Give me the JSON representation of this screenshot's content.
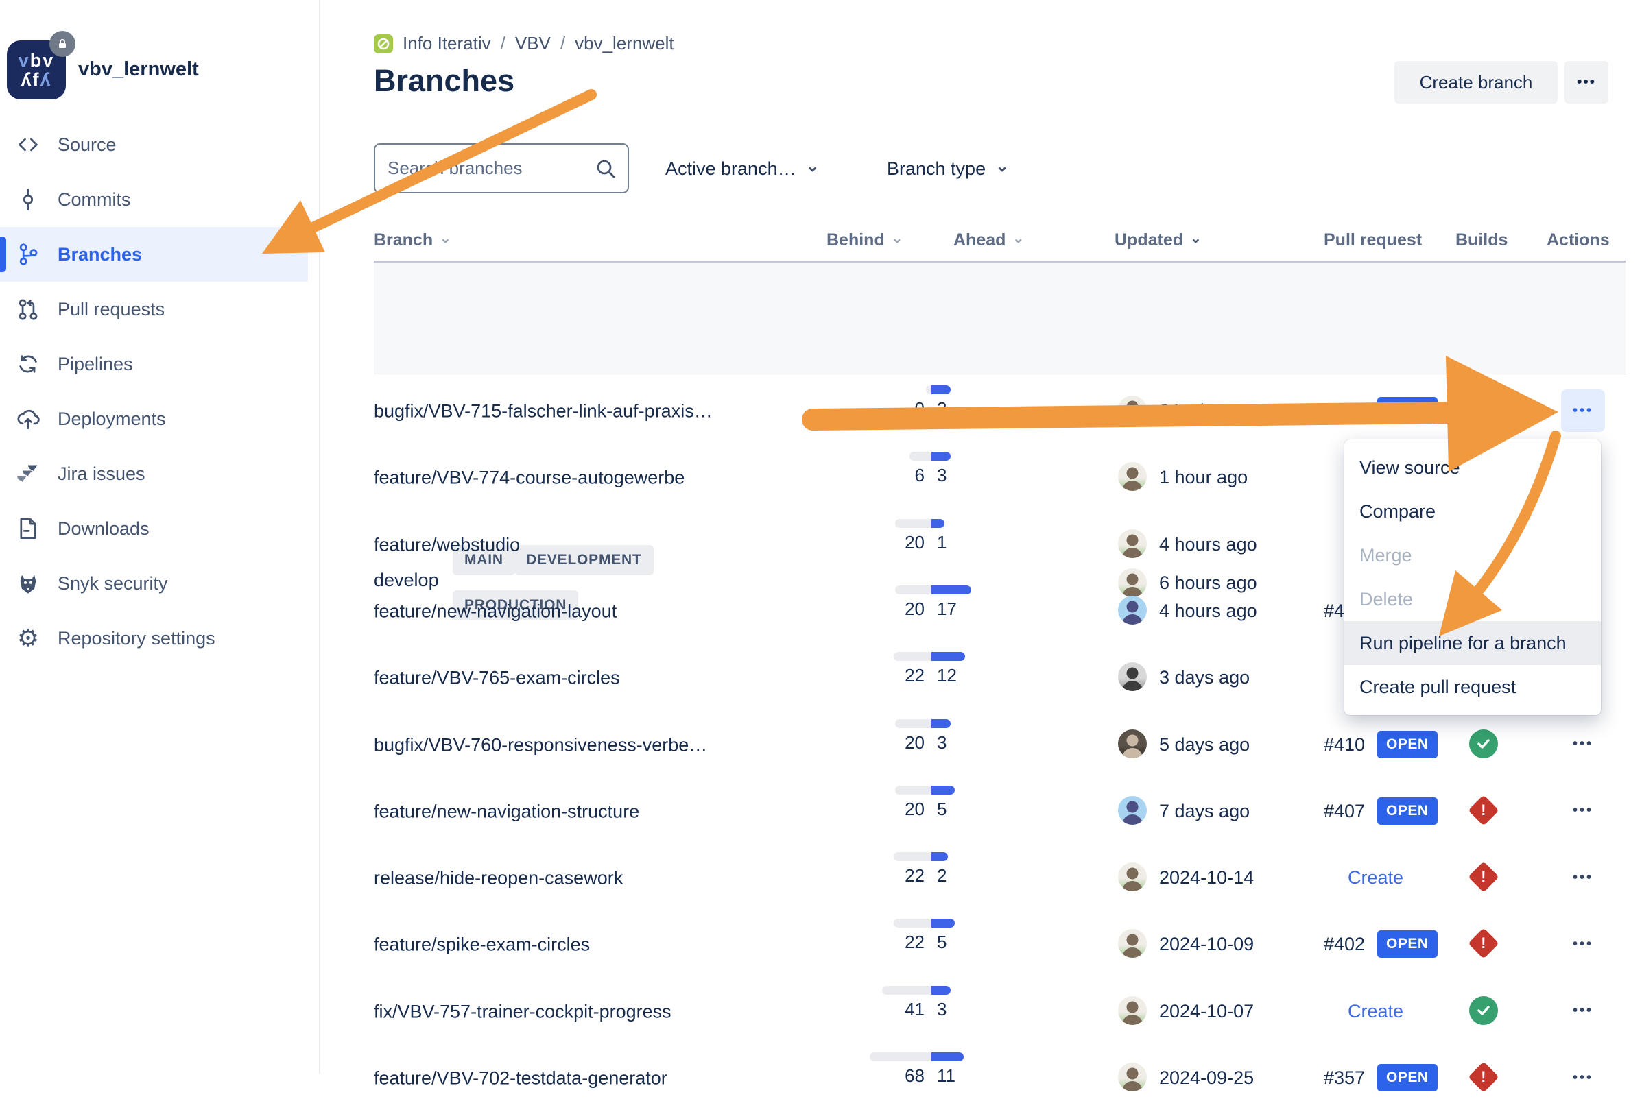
{
  "sidebar": {
    "repo_name": "vbv_lernwelt",
    "logo_text_top": "vbv",
    "logo_text_bottom": "ʌfʌ",
    "items": [
      {
        "label": "Source",
        "icon": "source-icon",
        "selected": false
      },
      {
        "label": "Commits",
        "icon": "commits-icon",
        "selected": false
      },
      {
        "label": "Branches",
        "icon": "branches-icon",
        "selected": true
      },
      {
        "label": "Pull requests",
        "icon": "pull-requests-icon",
        "selected": false
      },
      {
        "label": "Pipelines",
        "icon": "pipelines-icon",
        "selected": false
      },
      {
        "label": "Deployments",
        "icon": "deployments-icon",
        "selected": false
      },
      {
        "label": "Jira issues",
        "icon": "jira-icon",
        "selected": false
      },
      {
        "label": "Downloads",
        "icon": "downloads-icon",
        "selected": false
      },
      {
        "label": "Snyk security",
        "icon": "snyk-icon",
        "selected": false
      },
      {
        "label": "Repository settings",
        "icon": "settings-icon",
        "selected": false
      }
    ]
  },
  "breadcrumb": {
    "items": [
      "Info Iterativ",
      "VBV",
      "vbv_lernwelt"
    ],
    "separator": "/"
  },
  "header": {
    "title": "Branches",
    "create_branch_label": "Create branch",
    "more_button": "•••"
  },
  "filters": {
    "search_placeholder": "Search branches",
    "active_branch": "Active branch…",
    "branch_type": "Branch type"
  },
  "table": {
    "columns": [
      {
        "label": "Branch",
        "sortable": true,
        "sorted": false
      },
      {
        "label": "Behind",
        "sortable": true,
        "sorted": false
      },
      {
        "label": "Ahead",
        "sortable": true,
        "sorted": false
      },
      {
        "label": "Updated",
        "sortable": true,
        "sorted": true
      },
      {
        "label": "Pull request",
        "sortable": false,
        "sorted": false
      },
      {
        "label": "Builds",
        "sortable": false,
        "sorted": false
      },
      {
        "label": "Actions",
        "sortable": false,
        "sorted": false
      }
    ]
  },
  "develop_row": {
    "branch": "develop",
    "environment_labels": [
      "MAIN",
      "DEVELOPMENT",
      "PRODUCTION"
    ],
    "updated": "6 hours ago",
    "avatar": "man-photo",
    "build": "success"
  },
  "rows": [
    {
      "branch": "bugfix/VBV-715-falscher-link-auf-praxis…",
      "behind": 0,
      "ahead": 3,
      "updated": "24 minutes ago",
      "avatar": "man-photo",
      "pr": "#411",
      "pr_state": "OPEN",
      "build": "in-progress",
      "actions": true,
      "actions_active": true
    },
    {
      "branch": "feature/VBV-774-course-autogewerbe",
      "behind": 6,
      "ahead": 3,
      "updated": "1 hour ago",
      "avatar": "man-photo",
      "pr": null,
      "pr_state": null,
      "build": null,
      "actions": false,
      "actions_active": false
    },
    {
      "branch": "feature/webstudio",
      "behind": 20,
      "ahead": 1,
      "updated": "4 hours ago",
      "avatar": "man-photo",
      "pr": null,
      "pr_state": null,
      "build": null,
      "actions": false,
      "actions_active": false
    },
    {
      "branch": "feature/new-navigation-layout",
      "behind": 20,
      "ahead": 17,
      "updated": "4 hours ago",
      "avatar": "knight-pixel",
      "pr": "#4",
      "pr_state": null,
      "build": null,
      "actions": false,
      "actions_active": false
    },
    {
      "branch": "feature/VBV-765-exam-circles",
      "behind": 22,
      "ahead": 12,
      "updated": "3 days ago",
      "avatar": "man-bw",
      "pr": null,
      "pr_state": null,
      "build": null,
      "actions": false,
      "actions_active": false
    },
    {
      "branch": "bugfix/VBV-760-responsiveness-verbe…",
      "behind": 20,
      "ahead": 3,
      "updated": "5 days ago",
      "avatar": "man-dark",
      "pr": "#410",
      "pr_state": "OPEN",
      "build": "success",
      "actions": true,
      "actions_active": false
    },
    {
      "branch": "feature/new-navigation-structure",
      "behind": 20,
      "ahead": 5,
      "updated": "7 days ago",
      "avatar": "knight-pixel",
      "pr": "#407",
      "pr_state": "OPEN",
      "build": "failed",
      "actions": true,
      "actions_active": false
    },
    {
      "branch": "release/hide-reopen-casework",
      "behind": 22,
      "ahead": 2,
      "updated": "2024-10-14",
      "avatar": "man-photo",
      "pr": "Create",
      "pr_state": null,
      "build": "failed",
      "actions": true,
      "actions_active": false
    },
    {
      "branch": "feature/spike-exam-circles",
      "behind": 22,
      "ahead": 5,
      "updated": "2024-10-09",
      "avatar": "man-photo",
      "pr": "#402",
      "pr_state": "OPEN",
      "build": "failed",
      "actions": true,
      "actions_active": false
    },
    {
      "branch": "fix/VBV-757-trainer-cockpit-progress",
      "behind": 41,
      "ahead": 3,
      "updated": "2024-10-07",
      "avatar": "man-photo",
      "pr": "Create",
      "pr_state": null,
      "build": "success",
      "actions": true,
      "actions_active": false
    },
    {
      "branch": "feature/VBV-702-testdata-generator",
      "behind": 68,
      "ahead": 11,
      "updated": "2024-09-25",
      "avatar": "man-photo",
      "pr": "#357",
      "pr_state": "OPEN",
      "build": "failed",
      "actions": true,
      "actions_active": false
    }
  ],
  "context_menu": {
    "items": [
      {
        "label": "View source",
        "enabled": true,
        "highlighted": false
      },
      {
        "label": "Compare",
        "enabled": true,
        "highlighted": false
      },
      {
        "label": "Merge",
        "enabled": false,
        "highlighted": false
      },
      {
        "label": "Delete",
        "enabled": false,
        "highlighted": false
      },
      {
        "label": "Run pipeline for a branch",
        "enabled": true,
        "highlighted": true
      },
      {
        "label": "Create pull request",
        "enabled": true,
        "highlighted": false
      }
    ]
  },
  "icons": {
    "ellipsis": "•••",
    "exclamation": "!"
  },
  "colors": {
    "accent_blue": "#2c63e8",
    "navy_text": "#172b4d",
    "muted_text": "#44546f",
    "success_green": "#36a16e",
    "failed_red": "#c5372c",
    "annotation_orange": "#f1993f",
    "selected_nav_bg": "#ebf1fd",
    "band_bg": "#f7f8f9",
    "badge_bg": "#ebedf0"
  }
}
